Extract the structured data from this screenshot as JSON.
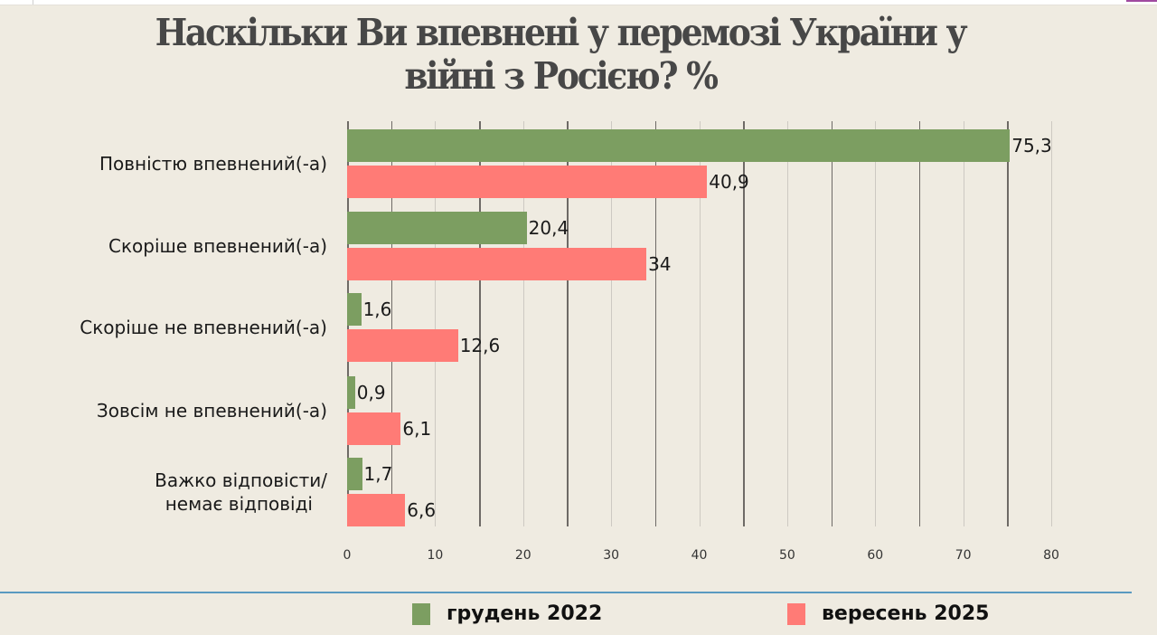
{
  "title": "Наскільки Ви впевнені у перемозі України у війні з Росією? %",
  "title_lines": [
    "Наскільки Ви впевнені у перемозі України у",
    "війні з Росією? %"
  ],
  "chart_data": {
    "type": "bar",
    "orientation": "horizontal",
    "title": "Наскільки Ви впевнені у перемозі України у війні з Росією? %",
    "categories": [
      "Повністю впевнений(-а)",
      "Скоріше впевнений(-а)",
      "Скоріше не впевнений(-а)",
      "Зовсім не впевнений(-а)",
      "Важко відповісти/ немає відповіді"
    ],
    "category_lines": [
      [
        "Повністю впевнений(-а)"
      ],
      [
        "Скоріше впевнений(-а)"
      ],
      [
        "Скоріше не впевнений(-а)"
      ],
      [
        "Зовсім не впевнений(-а)"
      ],
      [
        "Важко відповісти/",
        "немає відповіді"
      ]
    ],
    "series": [
      {
        "name": "грудень 2022",
        "color": "#7c9e61",
        "values": [
          75.3,
          20.4,
          1.6,
          0.9,
          1.7
        ],
        "labels": [
          "75,3",
          "20,4",
          "1,6",
          "0,9",
          "1,7"
        ]
      },
      {
        "name": "вересень 2025",
        "color": "#ff7b76",
        "values": [
          40.9,
          34,
          12.6,
          6.1,
          6.6
        ],
        "labels": [
          "40,9",
          "34",
          "12,6",
          "6,1",
          "6,6"
        ]
      }
    ],
    "xlabel": "",
    "ylabel": "",
    "xlim": [
      0,
      80
    ],
    "xticks": [
      "0",
      "10",
      "20",
      "30",
      "40",
      "50",
      "60",
      "70",
      "80"
    ],
    "grid": true,
    "legend_position": "bottom"
  },
  "legend": {
    "items": [
      {
        "label": "грудень 2022",
        "color": "#7c9e61"
      },
      {
        "label": "вересень 2025",
        "color": "#ff7b76"
      }
    ]
  }
}
